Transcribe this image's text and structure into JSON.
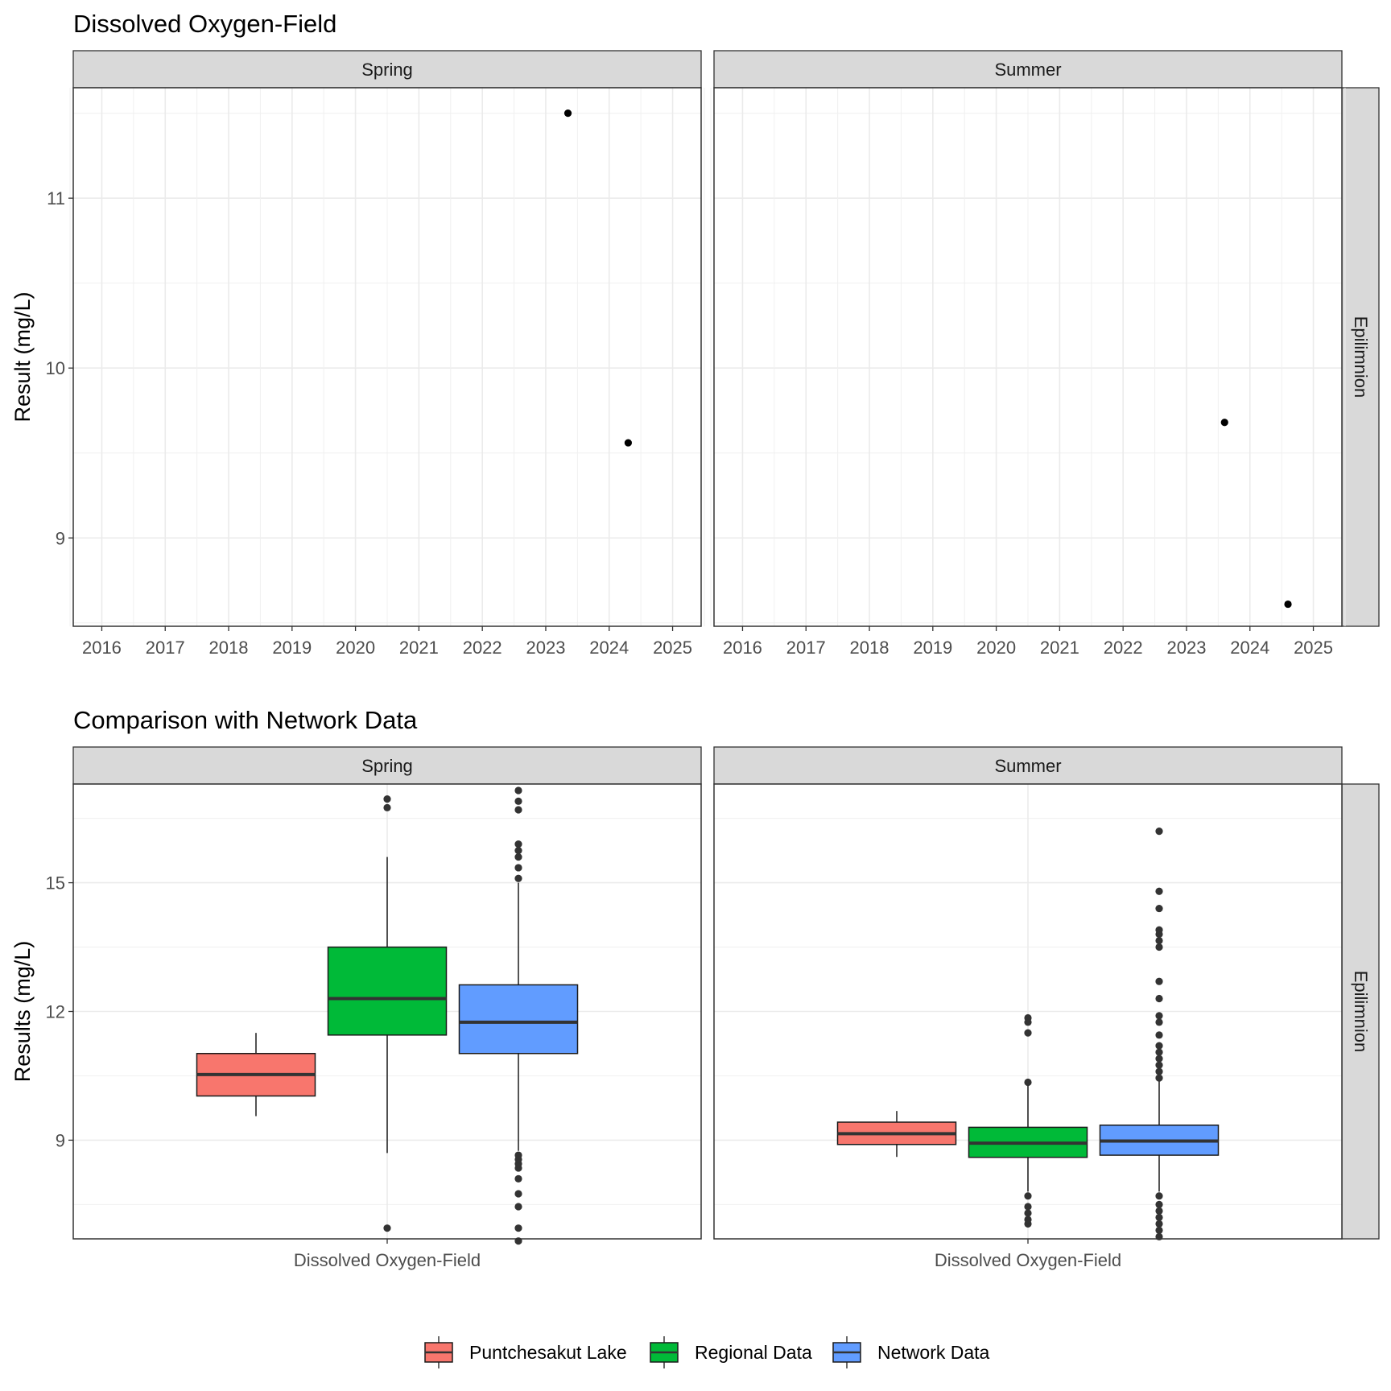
{
  "chart_data": [
    {
      "type": "scatter",
      "title": "Dissolved Oxygen-Field",
      "ylabel": "Result (mg/L)",
      "xlabel": "",
      "row_strip": "Epilimnion",
      "xlim": [
        2015.55,
        2025.45
      ],
      "ylim": [
        8.48,
        11.65
      ],
      "x_ticks": [
        2016,
        2017,
        2018,
        2019,
        2020,
        2021,
        2022,
        2023,
        2024,
        2025
      ],
      "y_ticks": [
        9,
        10,
        11
      ],
      "grid": true,
      "panels": [
        {
          "facet": "Spring",
          "points": [
            {
              "x": 2023.35,
              "y": 11.5
            },
            {
              "x": 2024.3,
              "y": 9.56
            }
          ]
        },
        {
          "facet": "Summer",
          "points": [
            {
              "x": 2023.6,
              "y": 9.68
            },
            {
              "x": 2024.6,
              "y": 8.61
            }
          ]
        }
      ]
    },
    {
      "type": "box",
      "title": "Comparison with Network Data",
      "ylabel": "Results (mg/L)",
      "xlabel": "",
      "row_strip": "Epilimnion",
      "category": "Dissolved Oxygen-Field",
      "ylim": [
        6.7,
        17.3
      ],
      "y_ticks": [
        9,
        12,
        15
      ],
      "grid": true,
      "series": [
        {
          "name": "Puntchesakut Lake",
          "color": "#F8766D"
        },
        {
          "name": "Regional Data",
          "color": "#00BA38"
        },
        {
          "name": "Network Data",
          "color": "#619CFF"
        }
      ],
      "panels": [
        {
          "facet": "Spring",
          "boxes": [
            {
              "series": "Puntchesakut Lake",
              "min": 9.56,
              "q1": 10.03,
              "median": 10.53,
              "q3": 11.02,
              "max": 11.5,
              "outliers": []
            },
            {
              "series": "Regional Data",
              "min": 8.7,
              "q1": 11.45,
              "median": 12.3,
              "q3": 13.5,
              "max": 15.6,
              "outliers": [
                6.95,
                16.75,
                16.95
              ]
            },
            {
              "series": "Network Data",
              "min": 8.75,
              "q1": 11.02,
              "median": 11.75,
              "q3": 12.62,
              "max": 15.0,
              "outliers": [
                6.65,
                6.95,
                7.45,
                7.75,
                8.1,
                8.35,
                8.45,
                8.55,
                8.65,
                15.1,
                15.35,
                15.6,
                15.75,
                15.9,
                16.7,
                16.9,
                17.15
              ]
            }
          ]
        },
        {
          "facet": "Summer",
          "boxes": [
            {
              "series": "Puntchesakut Lake",
              "min": 8.61,
              "q1": 8.9,
              "median": 9.15,
              "q3": 9.42,
              "max": 9.68,
              "outliers": []
            },
            {
              "series": "Regional Data",
              "min": 7.8,
              "q1": 8.6,
              "median": 8.93,
              "q3": 9.3,
              "max": 10.3,
              "outliers": [
                7.05,
                7.15,
                7.3,
                7.45,
                7.7,
                10.35,
                11.5,
                11.75,
                11.85
              ]
            },
            {
              "series": "Network Data",
              "min": 7.8,
              "q1": 8.65,
              "median": 8.98,
              "q3": 9.35,
              "max": 10.4,
              "outliers": [
                6.75,
                6.9,
                7.05,
                7.2,
                7.35,
                7.5,
                7.7,
                10.45,
                10.6,
                10.75,
                10.9,
                11.05,
                11.2,
                11.45,
                11.75,
                11.9,
                12.3,
                12.7,
                13.5,
                13.65,
                13.8,
                13.9,
                14.4,
                14.8,
                16.2
              ]
            }
          ]
        }
      ]
    }
  ]
}
